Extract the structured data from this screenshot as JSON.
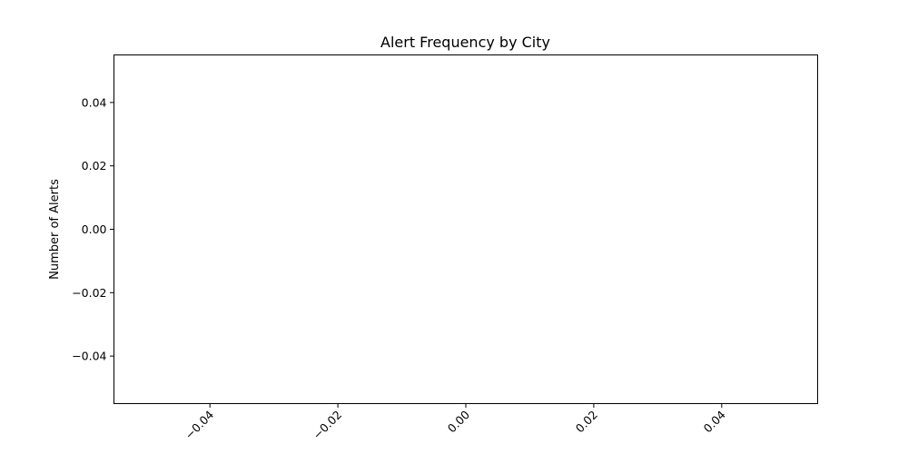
{
  "chart_data": {
    "type": "bar",
    "title": "Alert Frequency by City",
    "xlabel": "",
    "ylabel": "Number of Alerts",
    "categories": [],
    "values": [],
    "xlim": [
      -0.055,
      0.055
    ],
    "ylim": [
      -0.055,
      0.055
    ],
    "xticks": [
      -0.04,
      -0.02,
      0.0,
      0.02,
      0.04
    ],
    "xtick_labels": [
      "−0.04",
      "−0.02",
      "0.00",
      "0.02",
      "0.04"
    ],
    "xtick_rotation": 45,
    "yticks": [
      0.04,
      0.02,
      0.0,
      -0.02,
      -0.04
    ],
    "ytick_labels": [
      "0.04",
      "0.02",
      "0.00",
      "−0.02",
      "−0.04"
    ],
    "grid": false,
    "legend": "none"
  }
}
